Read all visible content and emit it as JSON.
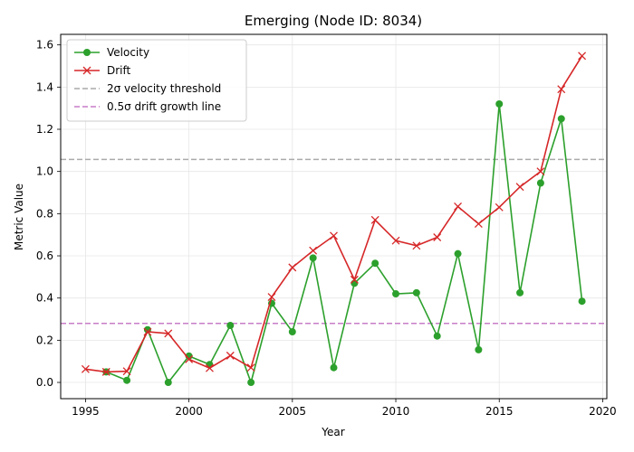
{
  "chart_data": {
    "type": "line",
    "title": "Emerging (Node ID: 8034)",
    "xlabel": "Year",
    "ylabel": "Metric Value",
    "xlim": [
      1993.8,
      2020.2
    ],
    "ylim": [
      -0.077,
      1.65
    ],
    "x_ticks": [
      1995,
      2000,
      2005,
      2010,
      2015,
      2020
    ],
    "y_ticks": [
      0.0,
      0.2,
      0.4,
      0.6,
      0.8,
      1.0,
      1.2,
      1.4,
      1.6
    ],
    "grid": true,
    "legend_position": "upper-left",
    "series": [
      {
        "name": "Velocity",
        "color": "#2ca02c",
        "marker": "circle",
        "x": [
          1996,
          1997,
          1998,
          1999,
          2000,
          2001,
          2002,
          2003,
          2004,
          2005,
          2006,
          2007,
          2008,
          2009,
          2010,
          2011,
          2012,
          2013,
          2014,
          2015,
          2016,
          2017,
          2018,
          2019
        ],
        "values": [
          0.05,
          0.01,
          0.25,
          0.0,
          0.125,
          0.085,
          0.27,
          0.0,
          0.375,
          0.24,
          0.59,
          0.07,
          0.47,
          0.565,
          0.42,
          0.425,
          0.22,
          0.61,
          0.155,
          1.32,
          0.425,
          0.945,
          1.25,
          0.385
        ]
      },
      {
        "name": "Drift",
        "color": "#d62728",
        "marker": "x",
        "x": [
          1995,
          1996,
          1997,
          1998,
          1999,
          2000,
          2001,
          2002,
          2003,
          2004,
          2005,
          2006,
          2007,
          2008,
          2009,
          2010,
          2011,
          2012,
          2013,
          2014,
          2015,
          2016,
          2017,
          2018,
          2019
        ],
        "values": [
          0.063,
          0.05,
          0.053,
          0.24,
          0.232,
          0.11,
          0.068,
          0.127,
          0.07,
          0.405,
          0.545,
          0.625,
          0.695,
          0.487,
          0.77,
          0.672,
          0.648,
          0.688,
          0.834,
          0.752,
          0.83,
          0.927,
          1.0,
          1.39,
          1.548
        ]
      }
    ],
    "reference_lines": [
      {
        "name": "2σ velocity threshold",
        "y": 1.057,
        "color": "#aaaaaa",
        "style": "dashed"
      },
      {
        "name": "0.5σ drift growth line",
        "y": 0.28,
        "color": "#c77dc7",
        "style": "dashed"
      }
    ]
  }
}
